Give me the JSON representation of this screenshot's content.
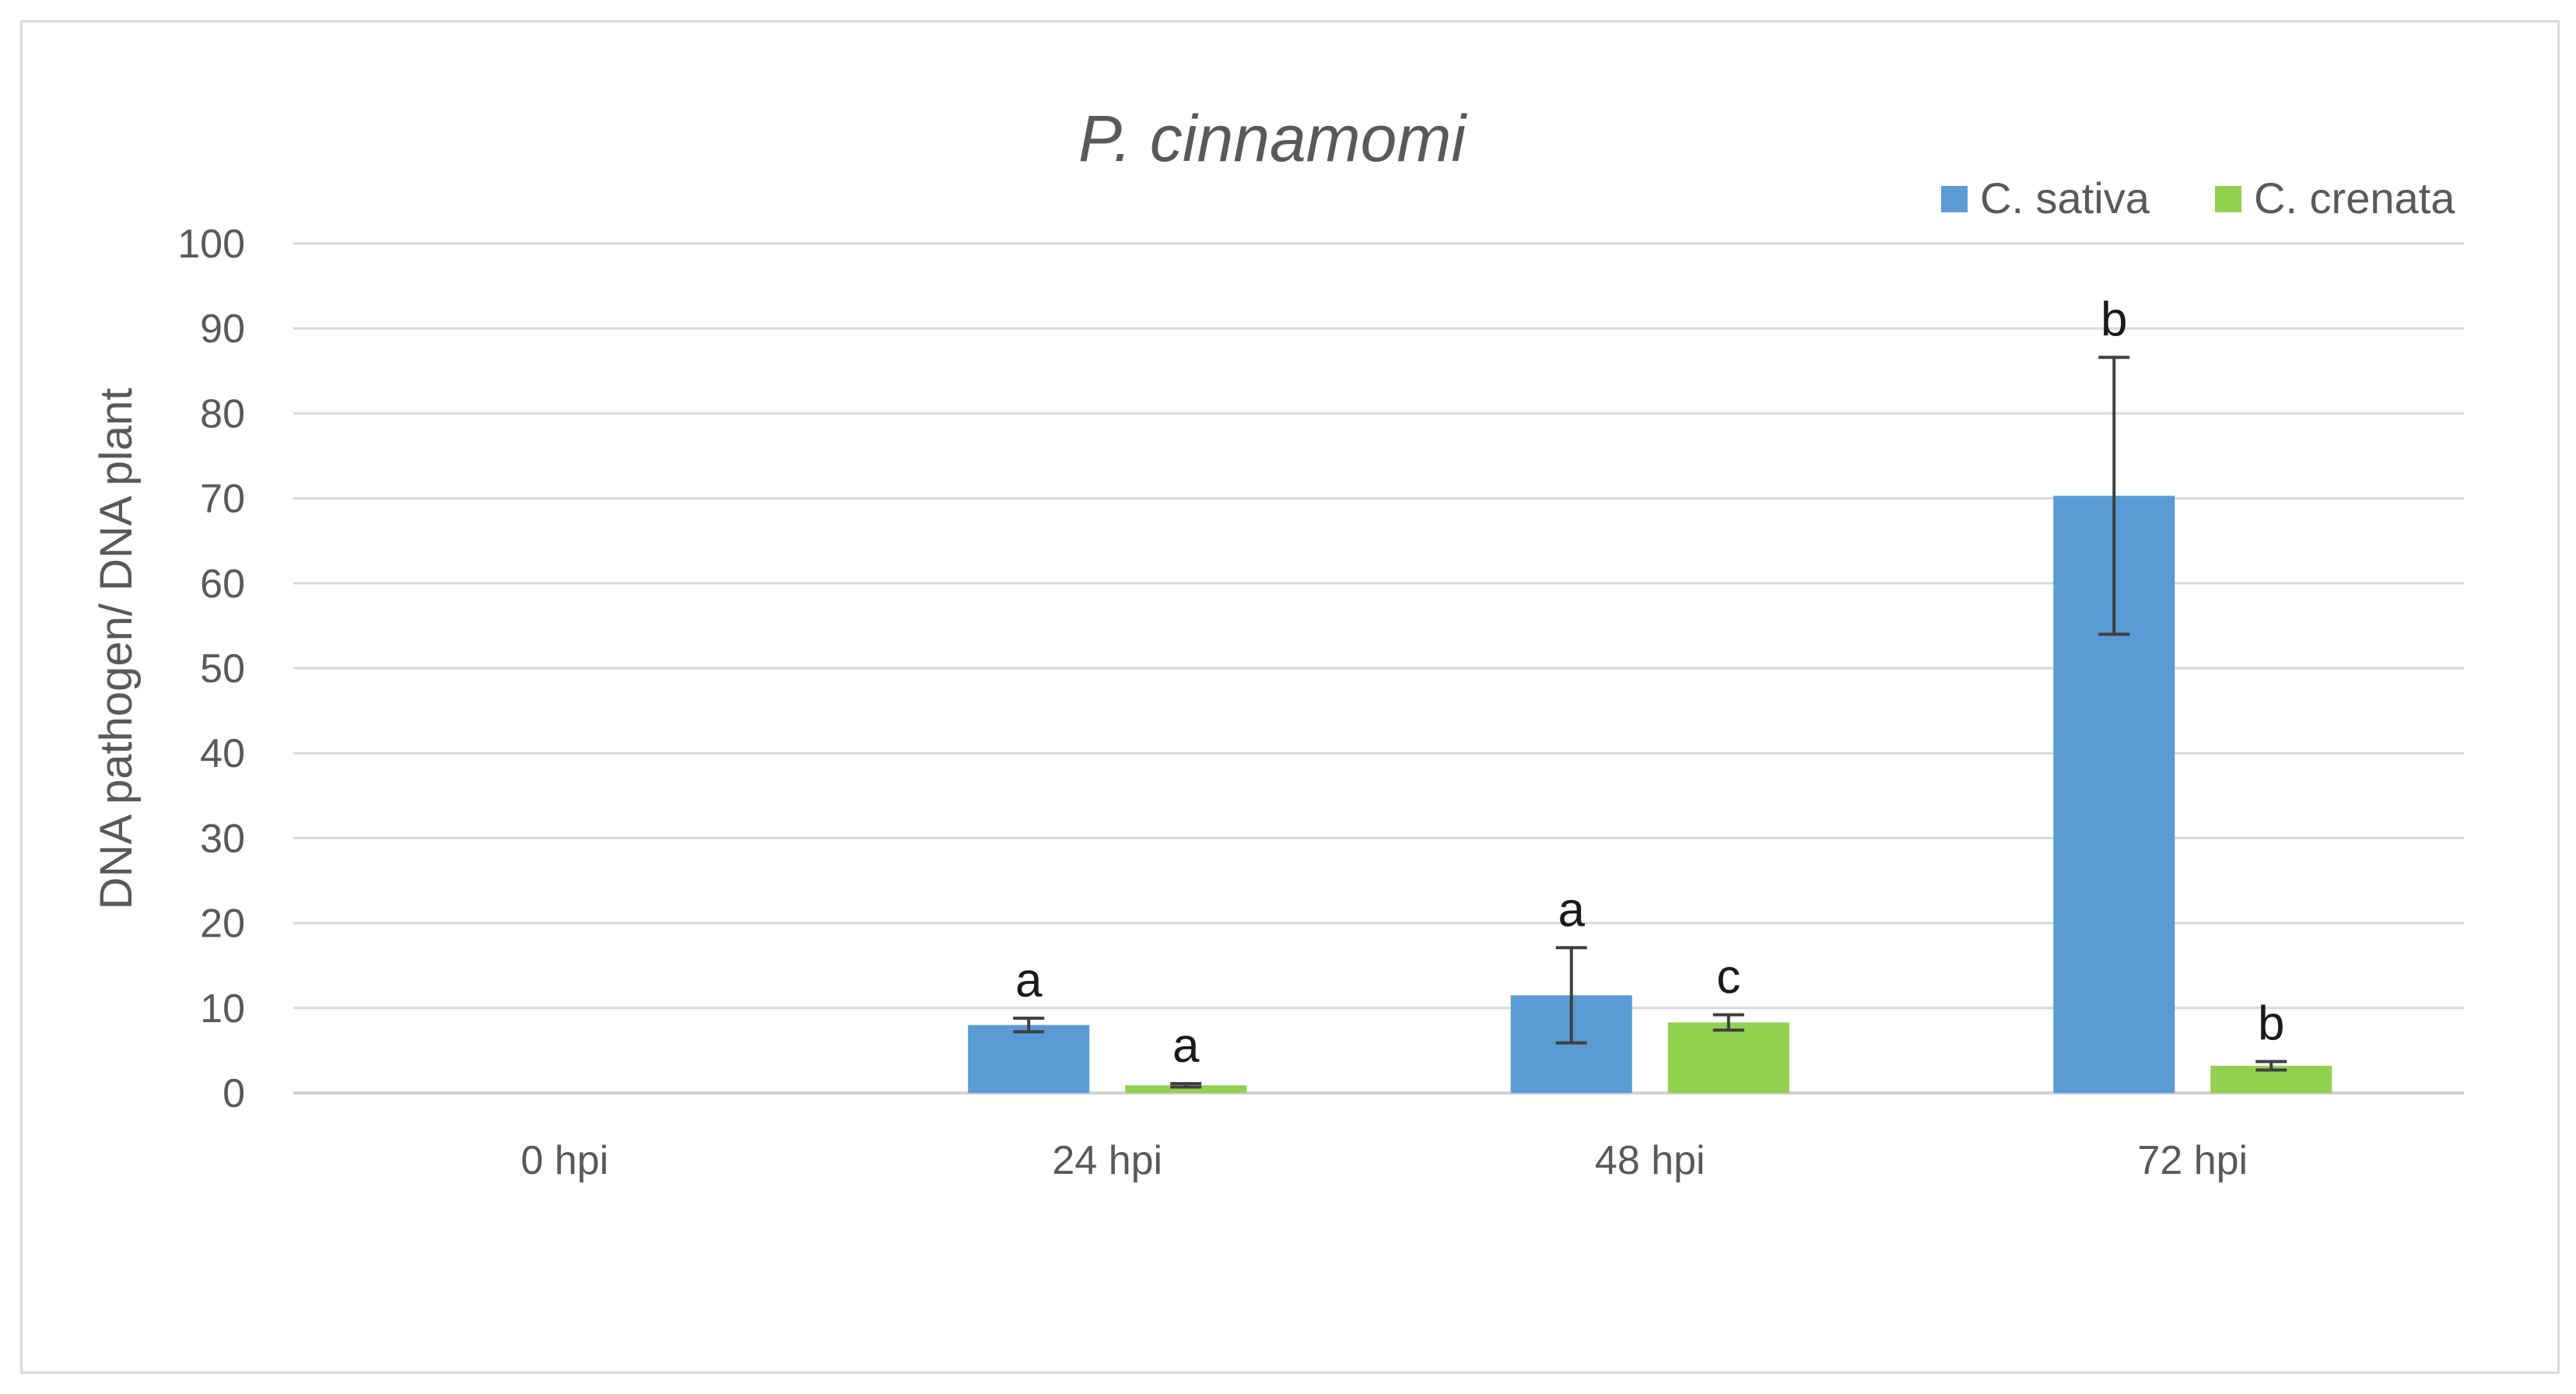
{
  "chart_data": {
    "type": "bar",
    "title": "P. cinnamomi",
    "ylabel": "DNA pathogen/ DNA plant",
    "xlabel": "",
    "ylim": [
      0,
      100
    ],
    "yticks": [
      0,
      10,
      20,
      30,
      40,
      50,
      60,
      70,
      80,
      90,
      100
    ],
    "grid": true,
    "legend_position": "top-right",
    "categories": [
      "0 hpi",
      "24 hpi",
      "48 hpi",
      "72 hpi"
    ],
    "series": [
      {
        "name": "C. sativa",
        "color": "#5b9bd5",
        "values": [
          0,
          8,
          11.5,
          70.3
        ],
        "errors": [
          0,
          0.8,
          5.6,
          16.3
        ],
        "labels": [
          "",
          "a",
          "a",
          "b"
        ]
      },
      {
        "name": "C. crenata",
        "color": "#92d050",
        "values": [
          0,
          0.9,
          8.3,
          3.2
        ],
        "errors": [
          0,
          0.2,
          0.9,
          0.5
        ],
        "labels": [
          "",
          "a",
          "c",
          "b"
        ]
      }
    ]
  }
}
